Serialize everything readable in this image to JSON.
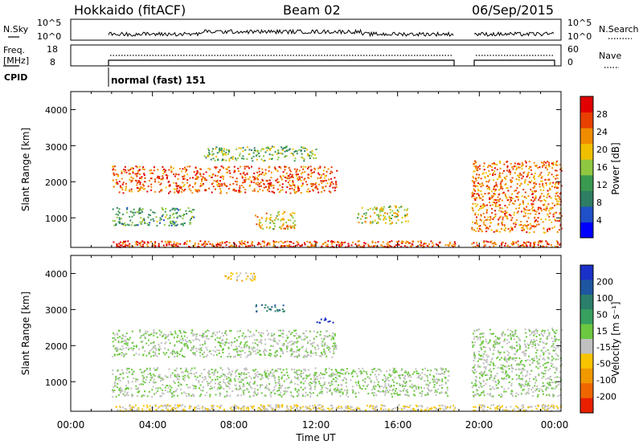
{
  "header": {
    "station": "Hokkaido (fitACF)",
    "beam": "Beam 02",
    "date": "06/Sep/2015"
  },
  "status_panels": {
    "nsky": {
      "left_label": "N.Sky",
      "right_label": "N.Search",
      "ticks_left": [
        "10^5",
        "10^0"
      ],
      "ticks_right": [
        "10^5",
        "10^0"
      ]
    },
    "freq": {
      "left_label_line1": "Freq.",
      "left_label_line2": "[MHz]",
      "right_label": "Nave",
      "ticks_left": [
        "18",
        "8"
      ],
      "ticks_right": [
        "60",
        "0"
      ]
    },
    "cpid": {
      "label": "CPID",
      "mode": "normal (fast) 151"
    }
  },
  "axes": {
    "x_label": "Time UT",
    "x_ticks": [
      "00:00",
      "04:00",
      "08:00",
      "12:00",
      "16:00",
      "20:00",
      "00:00"
    ],
    "y_label": "Slant Range [km]",
    "y_ticks": [
      "1000",
      "2000",
      "3000",
      "4000"
    ]
  },
  "colorbars": {
    "power": {
      "label": "Power [dB]",
      "ticks": [
        "4",
        "8",
        "12",
        "16",
        "20",
        "24",
        "28"
      ],
      "colors": [
        "#0000ff",
        "#2050c8",
        "#2e7e64",
        "#3a9a50",
        "#8fc840",
        "#f0c000",
        "#f08c00",
        "#e84000",
        "#e00000"
      ]
    },
    "velocity": {
      "label": "Velocity [m s⁻¹]",
      "ticks": [
        "200",
        "100",
        "50",
        "15",
        "-15",
        "-50",
        "-100",
        "-200"
      ],
      "colors": [
        "#1a30c8",
        "#1e56a0",
        "#2a7f6a",
        "#37a060",
        "#6cc840",
        "#c0c0c0",
        "#f8c400",
        "#f09800",
        "#ee6600",
        "#e82000"
      ]
    }
  },
  "chart_data": [
    {
      "type": "heatmap",
      "title": "Hokkaido (fitACF) Beam 02 06/Sep/2015",
      "xlabel": "Time UT",
      "ylabel": "Slant Range [km]",
      "xlim": [
        0,
        24
      ],
      "ylim": [
        180,
        4500
      ],
      "quantity": "Power [dB]",
      "clim": [
        0,
        32
      ],
      "data_gap_hours": [
        18.8,
        19.6
      ],
      "echo_regions": [
        {
          "t0": 2.0,
          "t1": 13.0,
          "r0": 1700,
          "r1": 2450,
          "value": 26
        },
        {
          "t0": 2.0,
          "t1": 6.0,
          "r0": 800,
          "r1": 1300,
          "value": 12
        },
        {
          "t0": 9.0,
          "t1": 11.0,
          "r0": 700,
          "r1": 1200,
          "value": 20
        },
        {
          "t0": 14.0,
          "t1": 16.5,
          "r0": 850,
          "r1": 1350,
          "value": 18
        },
        {
          "t0": 6.5,
          "t1": 12.0,
          "r0": 2600,
          "r1": 3000,
          "value": 14
        },
        {
          "t0": 19.6,
          "t1": 24.0,
          "r0": 600,
          "r1": 2600,
          "value": 24
        }
      ]
    },
    {
      "type": "heatmap",
      "xlabel": "Time UT",
      "ylabel": "Slant Range [km]",
      "xlim": [
        0,
        24
      ],
      "ylim": [
        180,
        4500
      ],
      "quantity": "Velocity [m s^-1]",
      "clim": [
        -200,
        200
      ],
      "data_gap_hours": [
        18.8,
        19.6
      ],
      "echo_regions": [
        {
          "t0": 2.0,
          "t1": 13.0,
          "r0": 1700,
          "r1": 2450,
          "value": 0
        },
        {
          "t0": 2.0,
          "t1": 18.5,
          "r0": 600,
          "r1": 1400,
          "value": 0
        },
        {
          "t0": 7.5,
          "t1": 9.0,
          "r0": 3800,
          "r1": 4050,
          "value": -60
        },
        {
          "t0": 12.0,
          "t1": 13.0,
          "r0": 2650,
          "r1": 2780,
          "value": 220
        },
        {
          "t0": 9.0,
          "t1": 10.5,
          "r0": 2950,
          "r1": 3150,
          "value": 110
        },
        {
          "t0": 19.6,
          "t1": 24.0,
          "r0": 600,
          "r1": 2500,
          "value": 0
        }
      ]
    }
  ]
}
